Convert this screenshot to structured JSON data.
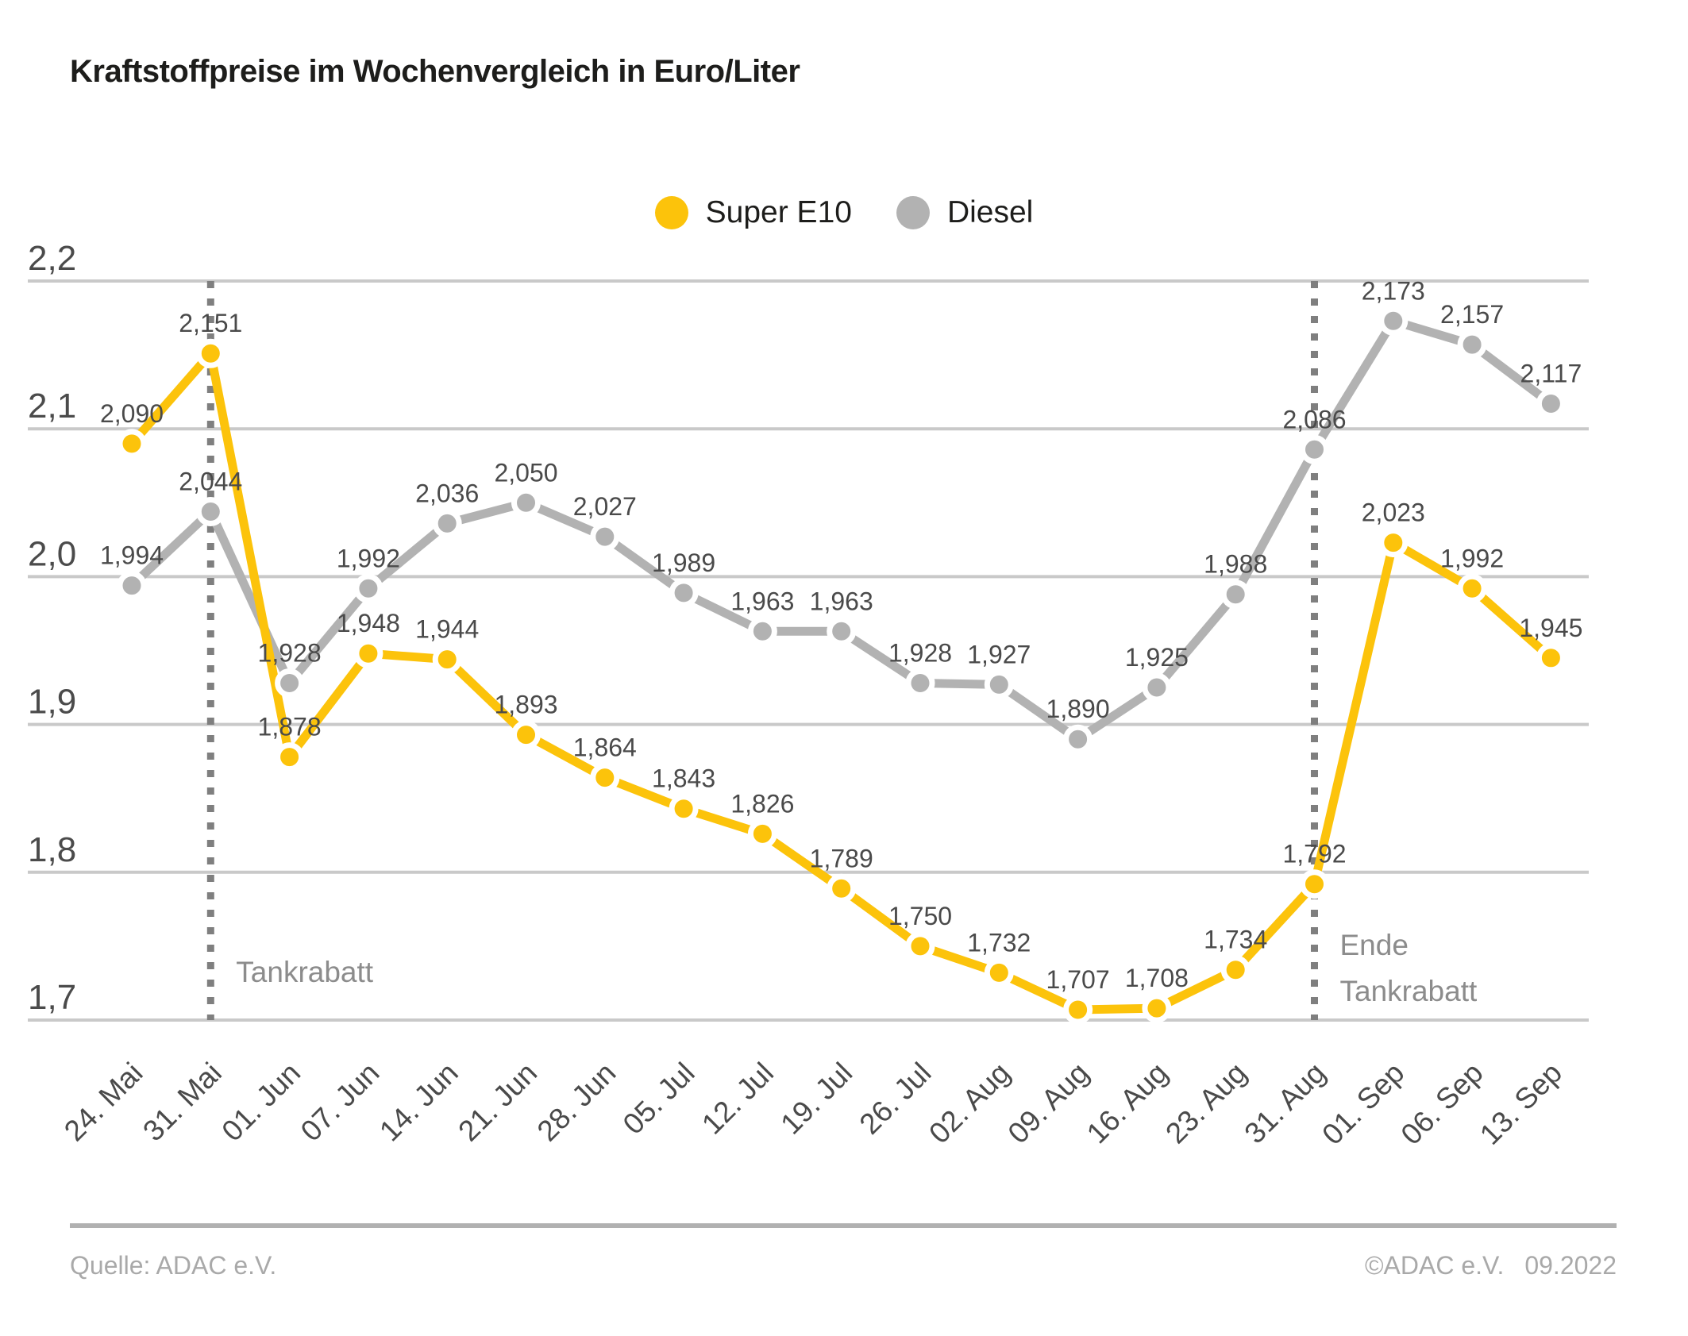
{
  "title": "Kraftstoffpreise im Wochenvergleich in Euro/Liter",
  "legend": [
    {
      "name": "Super E10",
      "color": "#fcc30b"
    },
    {
      "name": "Diesel",
      "color": "#b2b2b2"
    }
  ],
  "chart_data": {
    "type": "line",
    "title": "Kraftstoffpreise im Wochenvergleich in Euro/Liter",
    "xlabel": "",
    "ylabel": "Euro/Liter",
    "ylim": [
      1.7,
      2.2
    ],
    "ytick_step": 0.1,
    "grid": true,
    "legend_position": "top-center",
    "yticks": [
      {
        "label": "2,2",
        "value": 2.2
      },
      {
        "label": "2,1",
        "value": 2.1
      },
      {
        "label": "2,0",
        "value": 2.0
      },
      {
        "label": "1,9",
        "value": 1.9
      },
      {
        "label": "1,8",
        "value": 1.8
      },
      {
        "label": "1,7",
        "value": 1.7
      }
    ],
    "categories": [
      "24. Mai",
      "31. Mai",
      "01. Jun",
      "07. Jun",
      "14. Jun",
      "21. Jun",
      "28. Jun",
      "05. Jul",
      "12. Jul",
      "19. Jul",
      "26. Jul",
      "02. Aug",
      "09. Aug",
      "16. Aug",
      "23. Aug",
      "31. Aug",
      "01. Sep",
      "06. Sep",
      "13. Sep"
    ],
    "series": [
      {
        "name": "Super E10",
        "color": "#fcc30b",
        "values": [
          2.09,
          2.151,
          1.878,
          1.948,
          1.944,
          1.893,
          1.864,
          1.843,
          1.826,
          1.789,
          1.75,
          1.732,
          1.707,
          1.708,
          1.734,
          1.792,
          2.023,
          1.992,
          1.945
        ],
        "labels": [
          "2,090",
          "2,151",
          "1,878",
          "1,948",
          "1,944",
          "1,893",
          "1,864",
          "1,843",
          "1,826",
          "1,789",
          "1,750",
          "1,732",
          "1,707",
          "1,708",
          "1,734",
          "1,792",
          "2,023",
          "1,992",
          "1,945"
        ]
      },
      {
        "name": "Diesel",
        "color": "#b2b2b2",
        "values": [
          1.994,
          2.044,
          1.928,
          1.992,
          2.036,
          2.05,
          2.027,
          1.989,
          1.963,
          1.963,
          1.928,
          1.927,
          1.89,
          1.925,
          1.988,
          2.086,
          2.173,
          2.157,
          2.117
        ],
        "labels": [
          "1,994",
          "2,044",
          "1,928",
          "1,992",
          "2,036",
          "2,050",
          "2,027",
          "1,989",
          "1,963",
          "1,963",
          "1,928",
          "1,927",
          "1,890",
          "1,925",
          "1,988",
          "2,086",
          "2,173",
          "2,157",
          "2,117"
        ]
      }
    ],
    "annotations": [
      {
        "type": "vline",
        "category": "31. Mai",
        "category_index": 1,
        "lines": [
          "Tankrabatt"
        ]
      },
      {
        "type": "vline",
        "category": "31. Aug",
        "category_index": 15,
        "lines": [
          "Ende",
          "Tankrabatt"
        ]
      }
    ]
  },
  "footer": {
    "source": "Quelle: ADAC e.V.",
    "copyright": "©ADAC e.V.",
    "date": "09.2022"
  }
}
